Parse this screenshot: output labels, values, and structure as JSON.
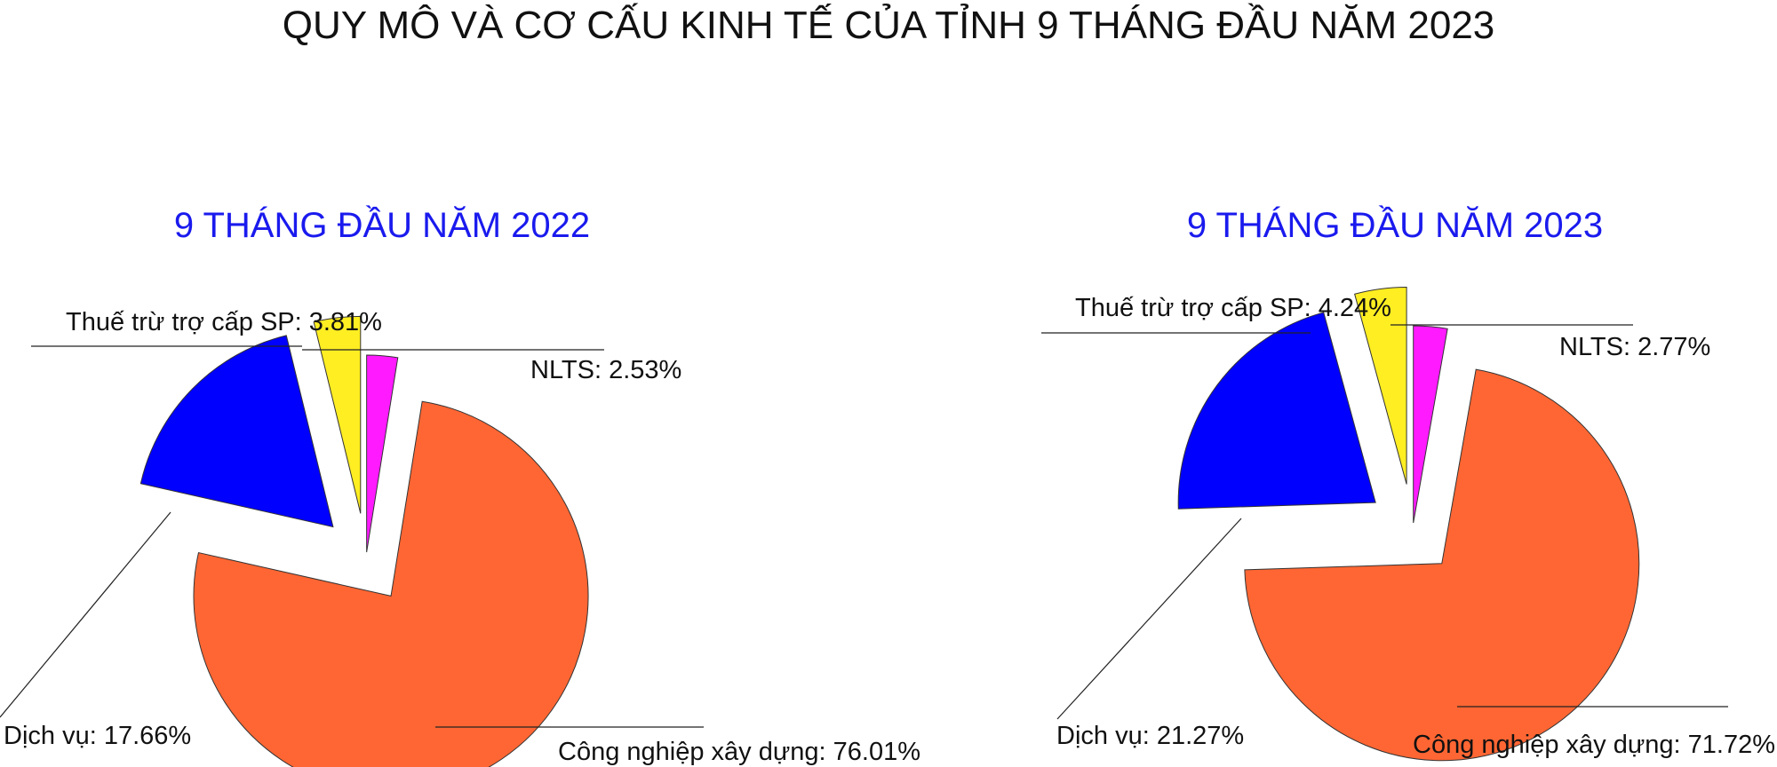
{
  "page": {
    "title": "QUY MÔ VÀ CƠ CẤU KINH TẾ CỦA TỈNH 9 THÁNG ĐẦU NĂM 2023"
  },
  "chart_data": [
    {
      "type": "pie",
      "title": "9 THÁNG ĐẦU NĂM 2022",
      "slices": [
        {
          "name": "NLTS",
          "value": 2.53,
          "label": "NLTS:  2.53%",
          "color": "#ff1aff"
        },
        {
          "name": "Công nghiệp xây dựng",
          "value": 76.01,
          "label": "Công nghiệp xây dựng: 76.01%",
          "color": "#ff6633"
        },
        {
          "name": "Dịch vụ",
          "value": 17.66,
          "label": "Dịch vụ:  17.66%",
          "color": "#0000ff"
        },
        {
          "name": "Thuế trừ trợ cấp SP",
          "value": 3.81,
          "label": "Thuế trừ trợ cấp SP:  3.81%",
          "color": "#ffee22"
        }
      ]
    },
    {
      "type": "pie",
      "title": "9 THÁNG ĐẦU NĂM 2023",
      "slices": [
        {
          "name": "NLTS",
          "value": 2.77,
          "label": "NLTS:  2.77%",
          "color": "#ff1aff"
        },
        {
          "name": "Công nghiệp xây dựng",
          "value": 71.72,
          "label": "Công nghiệp xây dựng: 71.72%",
          "color": "#ff6633"
        },
        {
          "name": "Dịch vụ",
          "value": 21.27,
          "label": "Dịch vụ:  21.27%",
          "color": "#0000ff"
        },
        {
          "name": "Thuế trừ trợ cấp SP",
          "value": 4.24,
          "label": "Thuế trừ trợ cấp SP:  4.24%",
          "color": "#ffee22"
        }
      ]
    }
  ]
}
